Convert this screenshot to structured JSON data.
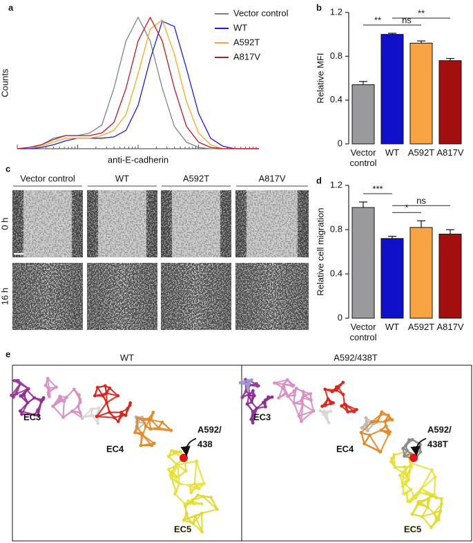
{
  "panel_labels": [
    "a",
    "b",
    "c",
    "d",
    "e"
  ],
  "chart_data": [
    {
      "type": "line",
      "ylabel": "Counts",
      "xlabel": "anti-E-cadherin",
      "x": [
        0,
        5,
        10,
        15,
        20,
        25,
        30,
        35,
        40,
        45,
        50,
        55,
        60,
        65,
        70,
        75,
        80,
        85,
        90,
        95,
        100
      ],
      "xlim": [
        0,
        100
      ],
      "ylim": [
        0,
        100
      ],
      "legend": "upper right",
      "series": [
        {
          "name": "Vector control",
          "color": "#808080",
          "values": [
            0,
            1,
            3,
            8,
            10,
            10,
            12,
            18,
            46,
            82,
            100,
            82,
            46,
            17,
            5,
            1,
            0,
            0,
            0,
            0,
            0
          ]
        },
        {
          "name": "WT",
          "color": "#1a1ae6",
          "values": [
            0,
            0,
            1,
            3,
            6,
            8,
            8,
            8,
            9,
            14,
            33,
            68,
            97,
            93,
            61,
            27,
            8,
            2,
            0,
            0,
            0
          ]
        },
        {
          "name": "A592T",
          "color": "#f5a623",
          "values": [
            0,
            1,
            2,
            5,
            8,
            8,
            8,
            10,
            14,
            26,
            57,
            91,
            98,
            72,
            36,
            12,
            3,
            0,
            0,
            0,
            0
          ]
        },
        {
          "name": "A817V",
          "color": "#c0161b",
          "values": [
            0,
            1,
            3,
            7,
            10,
            10,
            10,
            12,
            20,
            46,
            82,
            100,
            82,
            46,
            17,
            5,
            1,
            0,
            0,
            0,
            0
          ]
        }
      ]
    },
    {
      "type": "bar",
      "ylabel": "Relative MFI",
      "categories": [
        "Vector control",
        "WT",
        "A592T",
        "A817V"
      ],
      "values": [
        0.54,
        1.0,
        0.92,
        0.76
      ],
      "errors": [
        0.03,
        0.01,
        0.02,
        0.02
      ],
      "colors": [
        "#9a9a9c",
        "#1010c8",
        "#f8a443",
        "#a30f0f"
      ],
      "ylim": [
        0,
        1.2
      ],
      "yticks": [
        0,
        0.4,
        0.8,
        1.2
      ],
      "comparisons": [
        {
          "label": "**",
          "between": [
            "Vector control",
            "WT"
          ]
        },
        {
          "label": "ns",
          "between": [
            "WT",
            "A592T"
          ]
        },
        {
          "label": "**",
          "between": [
            "WT",
            "A817V"
          ]
        }
      ]
    },
    {
      "type": "bar",
      "ylabel": "Relative cell migration",
      "categories": [
        "Vector control",
        "WT",
        "A592T",
        "A817V"
      ],
      "values": [
        1.0,
        0.72,
        0.82,
        0.76
      ],
      "errors": [
        0.05,
        0.02,
        0.06,
        0.04
      ],
      "colors": [
        "#9a9a9c",
        "#1010c8",
        "#f8a443",
        "#a30f0f"
      ],
      "ylim": [
        0,
        1.2
      ],
      "yticks": [
        0,
        0.4,
        0.8,
        1.2
      ],
      "comparisons": [
        {
          "label": "***",
          "between": [
            "Vector control",
            "WT"
          ]
        },
        {
          "label": "*",
          "between": [
            "WT",
            "A592T"
          ]
        },
        {
          "label": "ns",
          "between": [
            "WT",
            "A817V"
          ]
        }
      ]
    }
  ],
  "wound_assay": {
    "columns": [
      "Vector control",
      "WT",
      "A592T",
      "A817V"
    ],
    "rows": [
      "0 h",
      "16 h"
    ]
  },
  "structures": [
    {
      "title": "WT",
      "domains": [
        "EC3",
        "EC4",
        "EC5"
      ],
      "site_label": [
        "A592/",
        "438"
      ]
    },
    {
      "title": "A592/438T",
      "domains": [
        "EC3",
        "EC4",
        "EC5"
      ],
      "site_label": [
        "A592/",
        "438T"
      ]
    }
  ]
}
